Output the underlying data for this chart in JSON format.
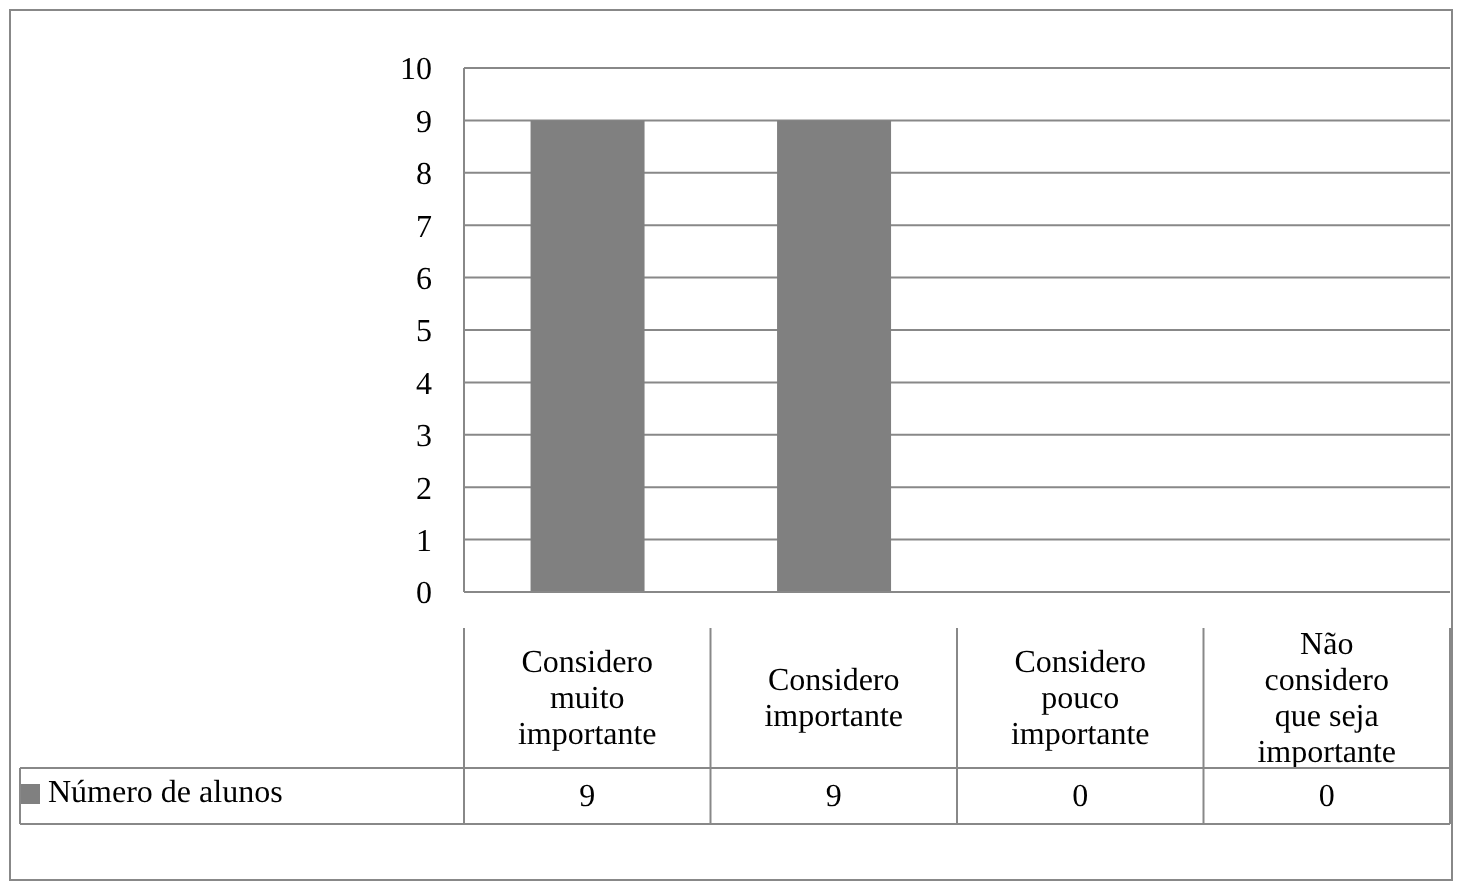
{
  "chart_data": {
    "type": "bar",
    "categories": [
      "Considero muito importante",
      "Considero importante",
      "Considero pouco importante",
      "Não considero que seja importante"
    ],
    "series": [
      {
        "name": "Número de alunos",
        "color": "#808080",
        "values": [
          9,
          9,
          0,
          0
        ]
      }
    ],
    "ylim": [
      0,
      10
    ],
    "yticks": [
      0,
      1,
      2,
      3,
      4,
      5,
      6,
      7,
      8,
      9,
      10
    ],
    "grid": "y",
    "legend": "bottom",
    "data_labels": true
  }
}
